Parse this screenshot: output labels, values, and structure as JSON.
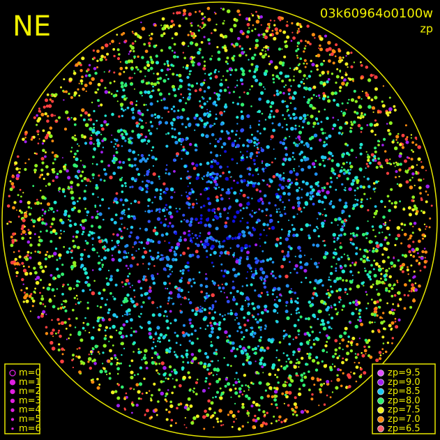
{
  "header": {
    "direction": "NE",
    "image_id": "03k60964o0100w",
    "quantity": "zp"
  },
  "magnitude_legend": {
    "items": [
      "m=0",
      "m=1",
      "m=2",
      "m=3",
      "m=4",
      "m=5",
      "m=6"
    ],
    "color": "#e020e0"
  },
  "zp_legend": {
    "items": [
      {
        "label": "zp=9.5",
        "color": "#e050ff"
      },
      {
        "label": "zp=9.0",
        "color": "#a020f0"
      },
      {
        "label": "zp=8.5",
        "color": "#20c8f0"
      },
      {
        "label": "zp=8.0",
        "color": "#30f070"
      },
      {
        "label": "zp=7.5",
        "color": "#f0f020"
      },
      {
        "label": "zp=7.0",
        "color": "#ff8c10"
      },
      {
        "label": "zp=6.5",
        "color": "#ff6070"
      }
    ]
  }
}
